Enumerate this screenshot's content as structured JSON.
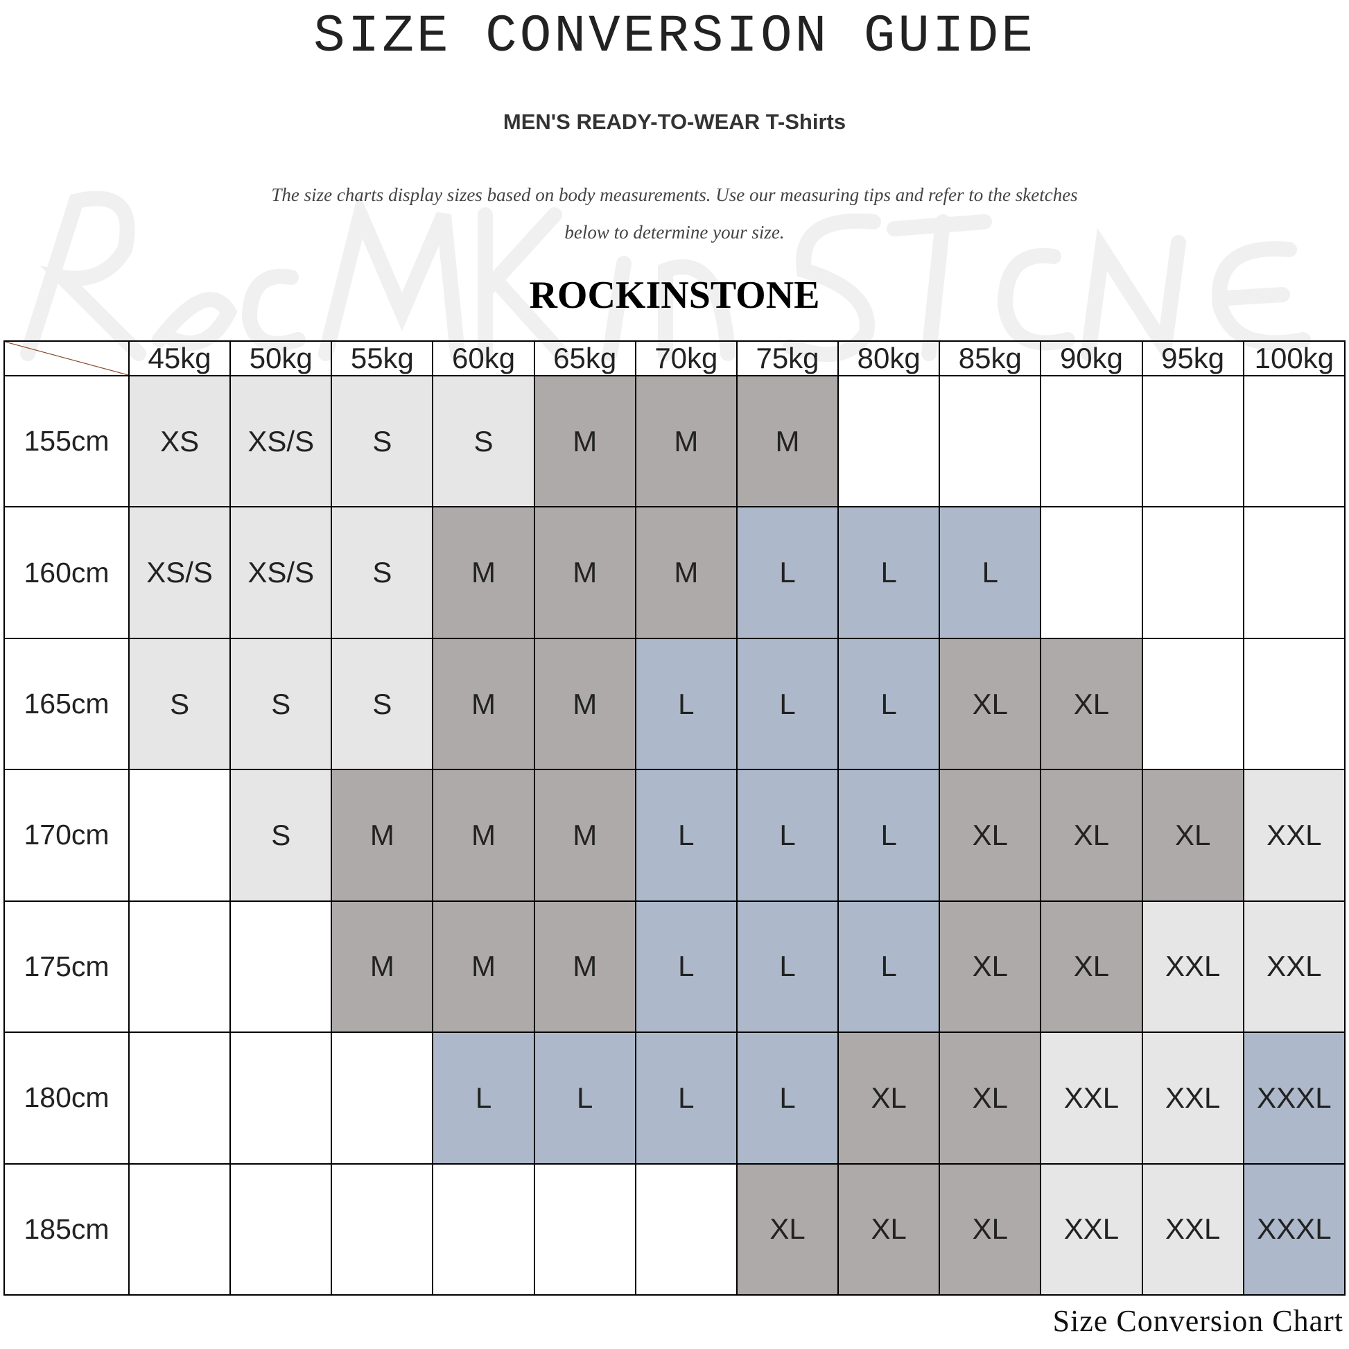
{
  "watermark": "RockInStone",
  "title": "SIZE CONVERSION GUIDE",
  "subtitle": "MEN'S READY-TO-WEAR T-Shirts",
  "description_line1": "The size charts display sizes based on body measurements. Use our measuring tips and refer to the sketches",
  "description_line2": "below to determine your size.",
  "brand": "ROCKINSTONE",
  "colors": {
    "light": "#e6e6e6",
    "dark": "#aeaaaa",
    "blue": "#adb9ca",
    "diagonal": "#8b4a2b"
  },
  "size_colors": {
    "XS": "light",
    "XS/S": "light",
    "S": "light",
    "M": "dark",
    "L": "blue",
    "XL": "dark",
    "XXL": "light",
    "XXXL": "blue"
  },
  "chart_data": {
    "type": "table",
    "columns": [
      "45kg",
      "50kg",
      "55kg",
      "60kg",
      "65kg",
      "70kg",
      "75kg",
      "80kg",
      "85kg",
      "90kg",
      "95kg",
      "100kg"
    ],
    "rows": [
      {
        "height": "155cm",
        "sizes": [
          "XS",
          "XS/S",
          "S",
          "S",
          "M",
          "M",
          "M",
          "",
          "",
          "",
          "",
          ""
        ]
      },
      {
        "height": "160cm",
        "sizes": [
          "XS/S",
          "XS/S",
          "S",
          "M",
          "M",
          "M",
          "L",
          "L",
          "L",
          "",
          "",
          ""
        ]
      },
      {
        "height": "165cm",
        "sizes": [
          "S",
          "S",
          "S",
          "M",
          "M",
          "L",
          "L",
          "L",
          "XL",
          "XL",
          "",
          ""
        ]
      },
      {
        "height": "170cm",
        "sizes": [
          "",
          "S",
          "M",
          "M",
          "M",
          "L",
          "L",
          "L",
          "XL",
          "XL",
          "XL",
          "XXL"
        ]
      },
      {
        "height": "175cm",
        "sizes": [
          "",
          "",
          "M",
          "M",
          "M",
          "L",
          "L",
          "L",
          "XL",
          "XL",
          "XXL",
          "XXL"
        ]
      },
      {
        "height": "180cm",
        "sizes": [
          "",
          "",
          "",
          "L",
          "L",
          "L",
          "L",
          "XL",
          "XL",
          "XXL",
          "XXL",
          "XXXL"
        ]
      },
      {
        "height": "185cm",
        "sizes": [
          "",
          "",
          "",
          "",
          "",
          "",
          "XL",
          "XL",
          "XL",
          "XXL",
          "XXL",
          "XXXL"
        ]
      }
    ]
  },
  "footer": "Size Conversion Chart"
}
